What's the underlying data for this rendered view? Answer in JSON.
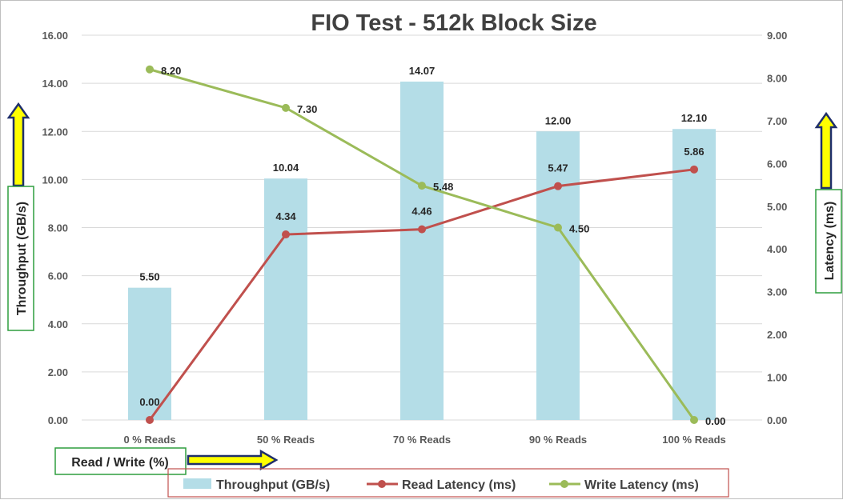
{
  "chart_data": {
    "type": "bar+line",
    "title": "FIO Test - 512k Block Size",
    "xlabel": "Read / Write (%)",
    "ylabel_left": "Throughput (GB/s)",
    "ylabel_right": "Latency (ms)",
    "categories": [
      "0 % Reads",
      "50 % Reads",
      "70 % Reads",
      "90 % Reads",
      "100 % Reads"
    ],
    "ylim_left": [
      0,
      16
    ],
    "ylim_right": [
      0,
      9
    ],
    "yticks_left": [
      "0.00",
      "2.00",
      "4.00",
      "6.00",
      "8.00",
      "10.00",
      "12.00",
      "14.00",
      "16.00"
    ],
    "yticks_right": [
      "0.00",
      "1.00",
      "2.00",
      "3.00",
      "4.00",
      "5.00",
      "6.00",
      "7.00",
      "8.00",
      "9.00"
    ],
    "grid": true,
    "legend_position": "bottom",
    "series": [
      {
        "name": "Throughput (GB/s)",
        "type": "bar",
        "axis": "left",
        "color": "#b4dde7",
        "values": [
          5.5,
          10.04,
          14.07,
          12.0,
          12.1
        ],
        "labels": [
          "5.50",
          "10.04",
          "14.07",
          "12.00",
          "12.10"
        ]
      },
      {
        "name": "Read Latency (ms)",
        "type": "line",
        "axis": "right",
        "color": "#c0504d",
        "values": [
          0.0,
          4.34,
          4.46,
          5.47,
          5.86
        ],
        "labels": [
          "0.00",
          "4.34",
          "4.46",
          "5.47",
          "5.86"
        ]
      },
      {
        "name": "Write Latency (ms)",
        "type": "line",
        "axis": "right",
        "color": "#9bbb59",
        "values": [
          8.2,
          7.3,
          5.48,
          4.5,
          0.0
        ],
        "labels": [
          "8.20",
          "7.30",
          "5.48",
          "4.50",
          "0.00"
        ]
      }
    ]
  },
  "colors": {
    "axis_box_border": "#2e9e3e",
    "legend_box_border": "#c0504d",
    "arrow_fill": "#ffff00",
    "arrow_outline": "#1f2f6b",
    "gridline": "#d9d9d9"
  }
}
